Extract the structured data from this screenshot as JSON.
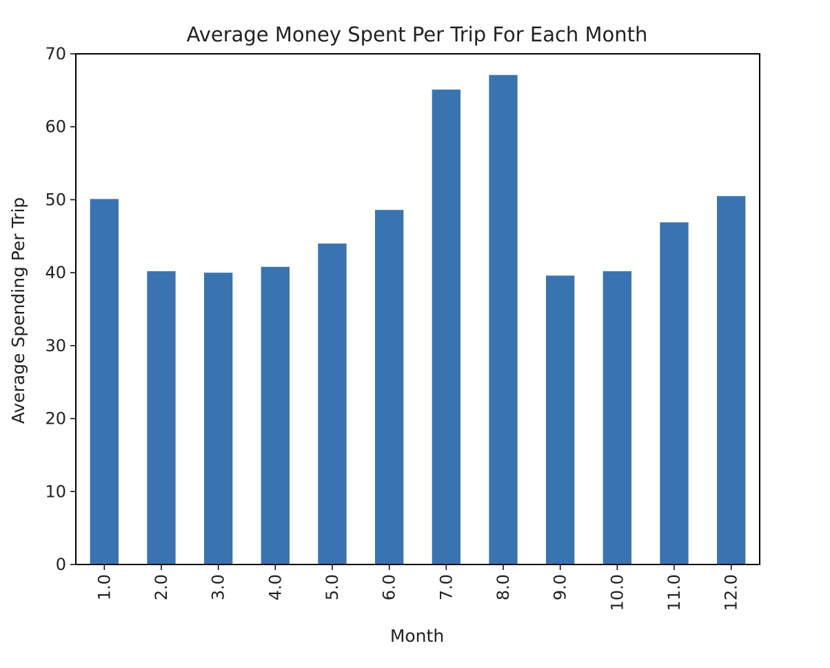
{
  "chart_data": {
    "type": "bar",
    "title": "Average Money Spent Per Trip For Each Month",
    "xlabel": "Month",
    "ylabel": "Average Spending Per Trip",
    "categories": [
      "1.0",
      "2.0",
      "3.0",
      "4.0",
      "5.0",
      "6.0",
      "7.0",
      "8.0",
      "9.0",
      "10.0",
      "11.0",
      "12.0"
    ],
    "values": [
      50.1,
      40.2,
      40.0,
      40.8,
      44.0,
      48.6,
      65.1,
      67.1,
      39.6,
      40.2,
      46.9,
      50.5
    ],
    "ylim": [
      0,
      70
    ],
    "yticks": [
      "0",
      "10",
      "20",
      "30",
      "40",
      "50",
      "60",
      "70"
    ],
    "bar_color": "#3a74b0",
    "grid": false,
    "legend": "none"
  }
}
